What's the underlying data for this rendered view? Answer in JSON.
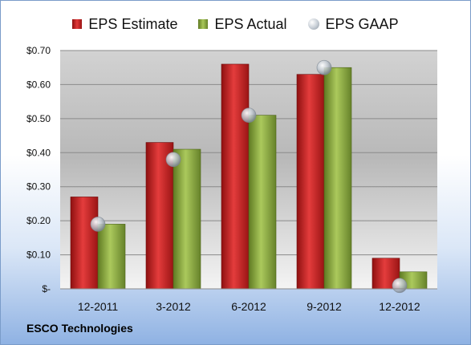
{
  "chart_data": {
    "type": "bar",
    "categories": [
      "12-2011",
      "3-2012",
      "6-2012",
      "9-2012",
      "12-2012"
    ],
    "series": [
      {
        "name": "EPS Estimate",
        "kind": "bar",
        "color": "#cc1f1f",
        "values": [
          0.27,
          0.43,
          0.66,
          0.63,
          0.09
        ]
      },
      {
        "name": "EPS Actual",
        "kind": "bar",
        "color": "#8fae3f",
        "values": [
          0.19,
          0.41,
          0.51,
          0.65,
          0.05
        ]
      },
      {
        "name": "EPS GAAP",
        "kind": "marker",
        "color": "#b8c2cc",
        "values": [
          0.19,
          0.38,
          0.51,
          0.65,
          0.01
        ]
      }
    ],
    "yticks": [
      "$-",
      "$0.10",
      "$0.20",
      "$0.30",
      "$0.40",
      "$0.50",
      "$0.60",
      "$0.70"
    ],
    "ylim": [
      0,
      0.7
    ],
    "grid": true,
    "legend_position": "top"
  },
  "footer": {
    "company": "ESCO Technologies"
  }
}
